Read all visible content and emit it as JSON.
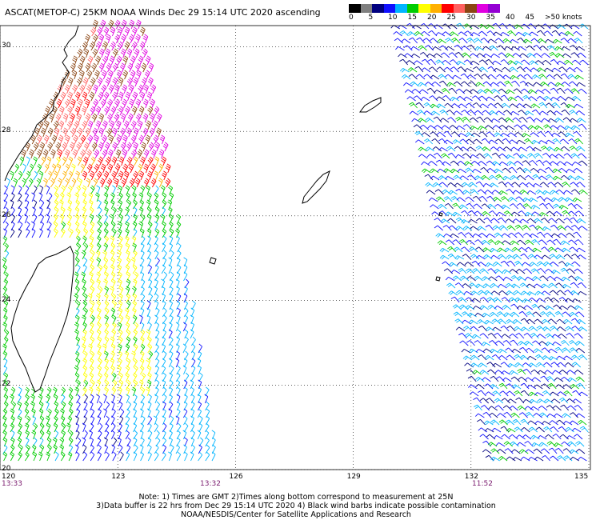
{
  "title": "ASCAT(METOP-C) 25KM NOAA Winds Dec 29 15:14 UTC 2020 ascending",
  "legend": {
    "colors": [
      "#000000",
      "#7f7f7f",
      "#00007f",
      "#1010ff",
      "#00b4ff",
      "#00cc00",
      "#ffff00",
      "#ffb000",
      "#ff0000",
      "#ff6060",
      "#8b4513",
      "#e000e0",
      "#9400d3"
    ],
    "labels": [
      "0",
      "5",
      "10",
      "15",
      "20",
      "25",
      "30",
      "35",
      "40",
      "45",
      ">50 knots"
    ]
  },
  "axes": {
    "lat_ticks": [
      "30",
      "28",
      "26",
      "24",
      "22",
      "20"
    ],
    "lon_ticks": [
      "120",
      "123",
      "126",
      "129",
      "132",
      "135"
    ],
    "lat_range": [
      20,
      30.5
    ],
    "lon_range": [
      120,
      135
    ]
  },
  "times": [
    {
      "text": "13:33"
    },
    {
      "text": "13:32"
    },
    {
      "text": "11:52"
    }
  ],
  "notes": [
    "Note: 1) Times are GMT 2)Times along bottom correspond to measurement at 25N",
    "3)Data buffer is 22 hrs from Dec 29 15:14 UTC 2020 4) Black wind barbs indicate possible contamination",
    "NOAA/NESDIS/Center for Satellite Applications and Research"
  ]
}
